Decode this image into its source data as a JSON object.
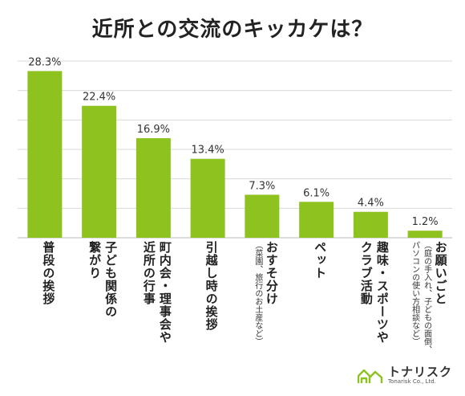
{
  "chart_data": {
    "type": "bar",
    "title": "近所との交流のキッカケは？",
    "ylim": [
      0,
      30
    ],
    "grid": true,
    "bar_color": "#8dc21f",
    "grid_color": "#d9d9d9",
    "categories": [
      {
        "lines": [
          "普段の挨拶"
        ]
      },
      {
        "lines": [
          "子ども関係の",
          "繋がり"
        ]
      },
      {
        "lines": [
          "町内会・理事会や",
          "近所の行事"
        ]
      },
      {
        "lines": [
          "引越し時の挨拶"
        ]
      },
      {
        "lines": [
          "おすそ分け"
        ],
        "note": [
          "（菜園、旅行のお土産など）"
        ]
      },
      {
        "lines": [
          "ペット"
        ]
      },
      {
        "lines": [
          "趣味・スポーツや",
          "クラブ活動"
        ]
      },
      {
        "lines": [
          "お願いごと"
        ],
        "note": [
          "（庭の手入れ、子どもの面倒、",
          "パソコンの使い方相談など）"
        ]
      }
    ],
    "values": [
      28.3,
      22.4,
      16.9,
      13.4,
      7.3,
      6.1,
      4.4,
      1.2
    ],
    "value_labels": [
      "28.3%",
      "22.4%",
      "16.9%",
      "13.4%",
      "7.3%",
      "6.1%",
      "4.4%",
      "1.2%"
    ]
  },
  "brand": {
    "name": "トナリスク",
    "subtitle": "Tonarisk Co., Ltd.",
    "logo_color": "#8dc21f"
  }
}
